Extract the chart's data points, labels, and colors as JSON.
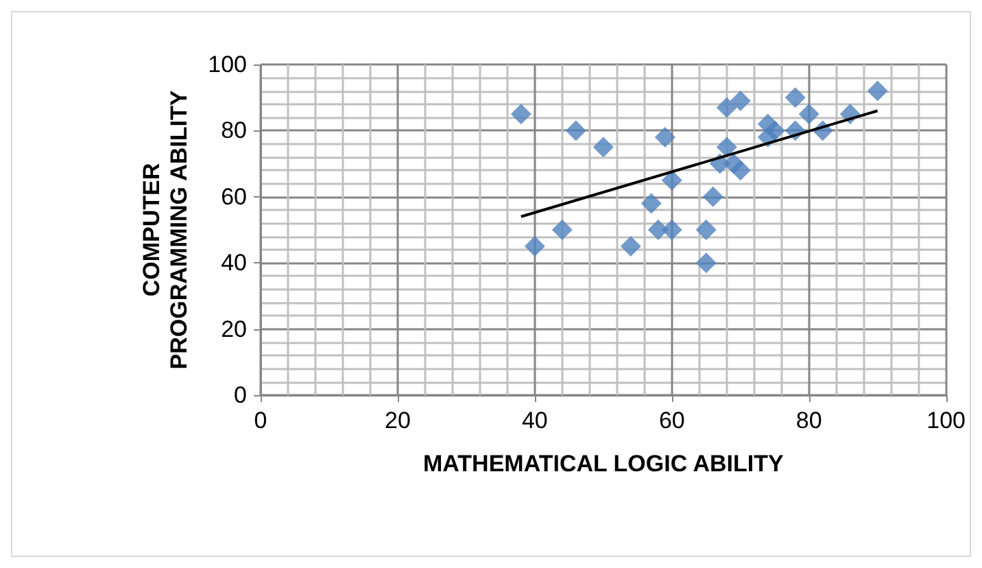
{
  "chart_data": {
    "type": "scatter",
    "xlabel": "MATHEMATICAL LOGIC ABILITY",
    "ylabel": "COMPUTER\nPROGRAMMING ABILITY",
    "xlim": [
      0,
      100
    ],
    "xticks": [
      0,
      20,
      40,
      60,
      80,
      100
    ],
    "ylim": [
      0,
      100
    ],
    "yticks": [
      0,
      20,
      40,
      60,
      80,
      100
    ],
    "grid": true,
    "series": [
      {
        "marker": "diamond",
        "color": "#4f81bd",
        "x": [
          38,
          40,
          44,
          46,
          50,
          54,
          57,
          58,
          59,
          60,
          60,
          65,
          65,
          66,
          67,
          68,
          68,
          70,
          69,
          70,
          74,
          74,
          75,
          78,
          78,
          80,
          82,
          86,
          90
        ],
        "values": [
          85,
          45,
          50,
          80,
          75,
          45,
          58,
          50,
          78,
          65,
          50,
          50,
          40,
          60,
          70,
          75,
          87,
          89,
          70,
          68,
          82,
          78,
          80,
          90,
          80,
          85,
          80,
          85,
          92
        ]
      },
      {
        "type": "line",
        "color": "#000000",
        "x": [
          38,
          90
        ],
        "values": [
          54,
          86
        ]
      }
    ]
  }
}
